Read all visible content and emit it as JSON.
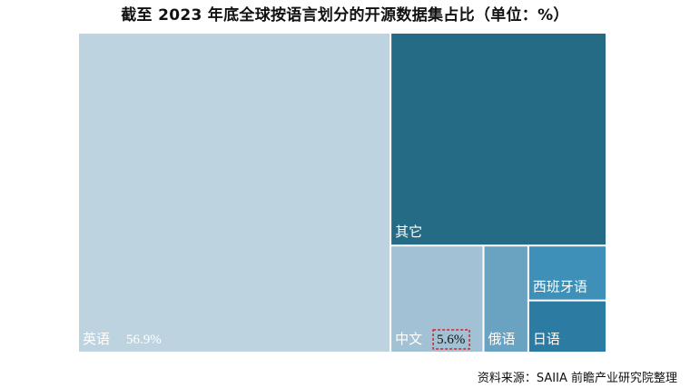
{
  "title": "截至 2023 年底全球按语言划分的开源数据集占比（单位：%）",
  "source": "资料来源：SAIIA 前瞻产业研究院整理",
  "chart_data": {
    "type": "treemap",
    "title": "截至 2023 年底全球按语言划分的开源数据集占比（单位：%）",
    "unit": "%",
    "items": [
      {
        "label": "英语",
        "value": 56.9,
        "value_label": "56.9%",
        "color": "#bdd3e0"
      },
      {
        "label": "其它",
        "value": 26.1,
        "color": "#266b86"
      },
      {
        "label": "中文",
        "value": 5.6,
        "value_label": "5.6%",
        "color": "#a3c1d4",
        "highlight": true
      },
      {
        "label": "俄语",
        "value": 2.7,
        "color": "#6aa3c2"
      },
      {
        "label": "西班牙语",
        "value": 2.4,
        "color": "#3e90b9"
      },
      {
        "label": "日语",
        "value": 2.2,
        "color": "#2b7ba3"
      }
    ],
    "highlight_color": "#e02020"
  }
}
